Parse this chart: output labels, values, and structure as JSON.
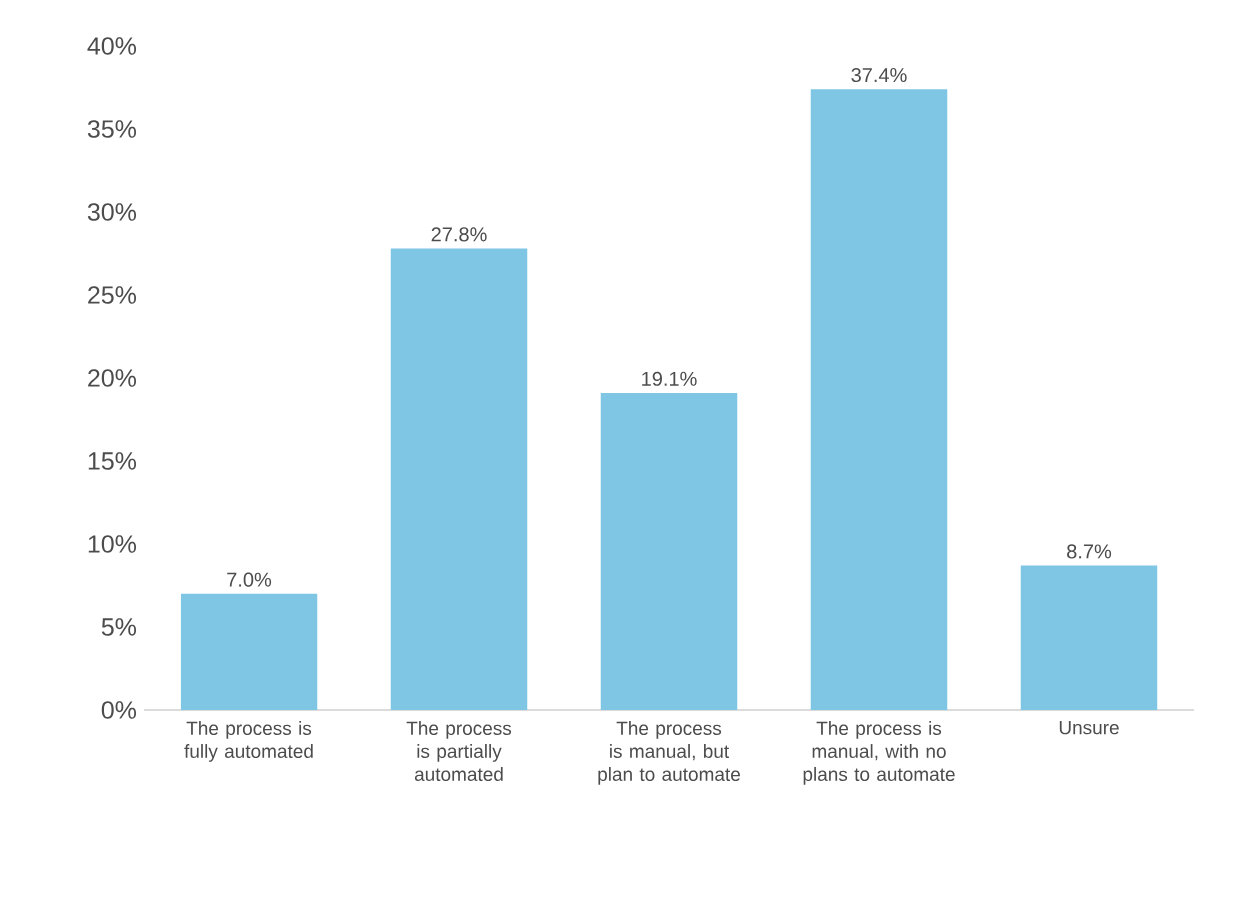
{
  "chart_data": {
    "type": "bar",
    "categories": [
      "The process is fully automated",
      "The process is partially automated",
      "The process is manual, but plan to automate",
      "The process is manual, with no plans to automate",
      "Unsure"
    ],
    "values": [
      7.0,
      27.8,
      19.1,
      37.4,
      8.7
    ],
    "value_labels": [
      "7.0%",
      "27.8%",
      "19.1%",
      "37.4%",
      "8.7%"
    ],
    "color": "#7ec6e3",
    "ylim": [
      0,
      40
    ],
    "yticks": [
      {
        "value": 0,
        "label": "0%"
      },
      {
        "value": 5,
        "label": "5%"
      },
      {
        "value": 10,
        "label": "10%"
      },
      {
        "value": 15,
        "label": "15%"
      },
      {
        "value": 20,
        "label": "20%"
      },
      {
        "value": 25,
        "label": "25%"
      },
      {
        "value": 30,
        "label": "30%"
      },
      {
        "value": 35,
        "label": "35%"
      },
      {
        "value": 40,
        "label": "40%"
      }
    ],
    "grid": false
  }
}
